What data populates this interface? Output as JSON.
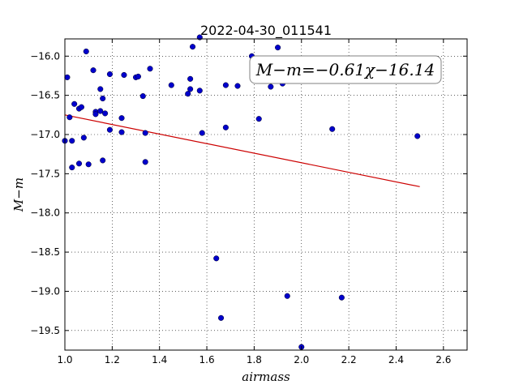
{
  "chart_data": {
    "type": "scatter",
    "title": "2022-04-30_011541",
    "xlabel": "airmass",
    "ylabel": "M−m",
    "xlim": [
      1.0,
      2.7
    ],
    "ylim": [
      -19.75,
      -15.78
    ],
    "y_inverted": true,
    "xticks": [
      1.0,
      1.2,
      1.4,
      1.6,
      1.8,
      2.0,
      2.2,
      2.4,
      2.6
    ],
    "xtick_labels": [
      "1.0",
      "1.2",
      "1.4",
      "1.6",
      "1.8",
      "2.0",
      "2.2",
      "2.4",
      "2.6"
    ],
    "yticks": [
      -16.0,
      -16.5,
      -17.0,
      -17.5,
      -18.0,
      -18.5,
      -19.0,
      -19.5
    ],
    "ytick_labels": [
      "−16.0",
      "−16.5",
      "−17.0",
      "−17.5",
      "−18.0",
      "−18.5",
      "−19.0",
      "−19.5"
    ],
    "grid": true,
    "point_color": "#0000cc",
    "points": [
      [
        1.01,
        -16.27
      ],
      [
        1.0,
        -17.08
      ],
      [
        1.02,
        -16.78
      ],
      [
        1.03,
        -17.08
      ],
      [
        1.03,
        -17.42
      ],
      [
        1.04,
        -16.61
      ],
      [
        1.06,
        -16.67
      ],
      [
        1.06,
        -17.37
      ],
      [
        1.07,
        -16.65
      ],
      [
        1.08,
        -17.04
      ],
      [
        1.09,
        -15.94
      ],
      [
        1.1,
        -17.38
      ],
      [
        1.12,
        -16.18
      ],
      [
        1.13,
        -16.71
      ],
      [
        1.13,
        -16.74
      ],
      [
        1.15,
        -16.42
      ],
      [
        1.15,
        -16.7
      ],
      [
        1.16,
        -16.54
      ],
      [
        1.16,
        -17.33
      ],
      [
        1.17,
        -16.73
      ],
      [
        1.19,
        -16.23
      ],
      [
        1.19,
        -16.94
      ],
      [
        1.24,
        -16.79
      ],
      [
        1.24,
        -16.97
      ],
      [
        1.25,
        -16.24
      ],
      [
        1.3,
        -16.27
      ],
      [
        1.31,
        -16.26
      ],
      [
        1.33,
        -16.51
      ],
      [
        1.34,
        -16.98
      ],
      [
        1.34,
        -17.35
      ],
      [
        1.36,
        -16.16
      ],
      [
        1.45,
        -16.37
      ],
      [
        1.52,
        -16.48
      ],
      [
        1.53,
        -16.29
      ],
      [
        1.53,
        -16.42
      ],
      [
        1.54,
        -15.88
      ],
      [
        1.57,
        -16.44
      ],
      [
        1.57,
        -15.76
      ],
      [
        1.58,
        -16.98
      ],
      [
        1.64,
        -18.58
      ],
      [
        1.66,
        -19.34
      ],
      [
        1.68,
        -16.37
      ],
      [
        1.68,
        -16.91
      ],
      [
        1.73,
        -16.38
      ],
      [
        1.79,
        -16.0
      ],
      [
        1.82,
        -16.8
      ],
      [
        1.87,
        -16.39
      ],
      [
        1.9,
        -15.89
      ],
      [
        1.92,
        -16.35
      ],
      [
        1.94,
        -19.06
      ],
      [
        2.0,
        -19.71
      ],
      [
        2.13,
        -16.93
      ],
      [
        2.17,
        -19.08
      ],
      [
        2.49,
        -17.02
      ]
    ],
    "fit": {
      "slope": -0.61,
      "intercept": -16.14,
      "x_range": [
        1.0,
        2.5
      ],
      "color": "#cc0000"
    },
    "annotation": {
      "text": "M−m=−0.61χ−16.14",
      "placement": "upper-right"
    }
  }
}
